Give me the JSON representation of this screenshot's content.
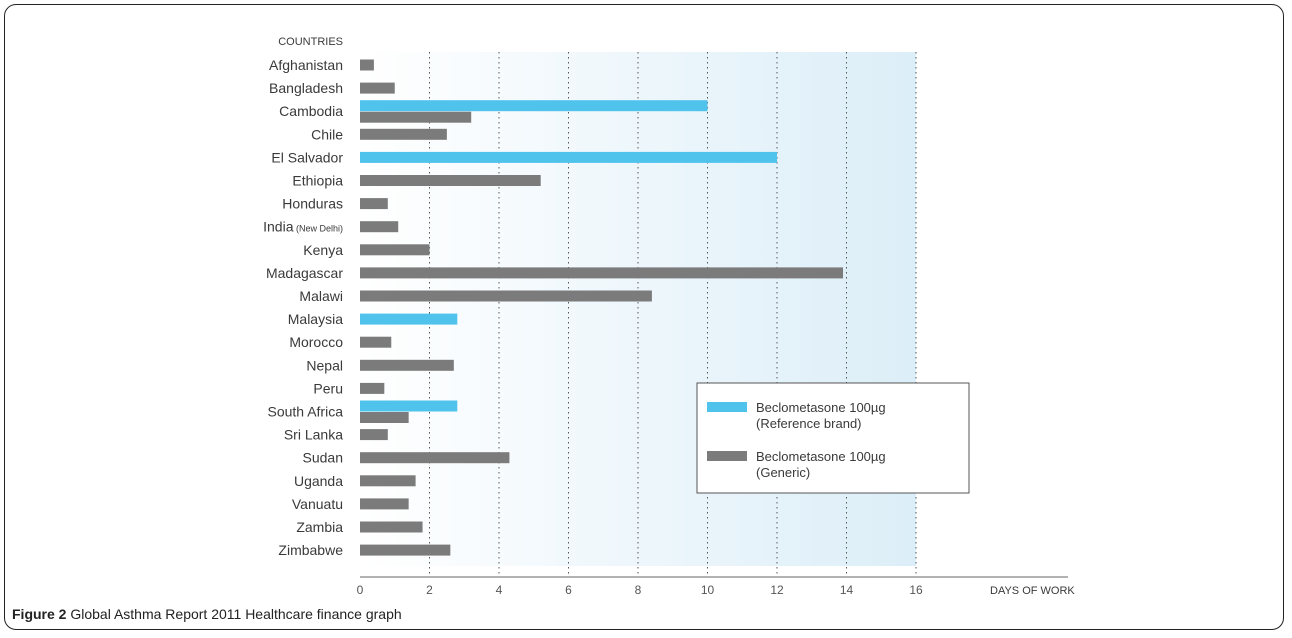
{
  "chart_data": {
    "type": "bar",
    "orientation": "horizontal",
    "y_axis_title": "COUNTRIES",
    "x_axis_title": "DAYS OF WORK",
    "xlim": [
      0,
      16
    ],
    "x_ticks": [
      "0",
      "2",
      "4",
      "6",
      "8",
      "10",
      "12",
      "14",
      "16"
    ],
    "grid": "vertical dotted",
    "legend_position": "bottom-right",
    "categories": [
      {
        "name": "Afghanistan"
      },
      {
        "name": "Bangladesh"
      },
      {
        "name": "Cambodia"
      },
      {
        "name": "Chile"
      },
      {
        "name": "El Salvador"
      },
      {
        "name": "Ethiopia"
      },
      {
        "name": "Honduras"
      },
      {
        "name": "India",
        "suffix": "(New Delhi)"
      },
      {
        "name": "Kenya"
      },
      {
        "name": "Madagascar"
      },
      {
        "name": "Malawi"
      },
      {
        "name": "Malaysia"
      },
      {
        "name": "Morocco"
      },
      {
        "name": "Nepal"
      },
      {
        "name": "Peru"
      },
      {
        "name": "South Africa"
      },
      {
        "name": "Sri Lanka"
      },
      {
        "name": "Sudan"
      },
      {
        "name": "Uganda"
      },
      {
        "name": "Vanuatu"
      },
      {
        "name": "Zambia"
      },
      {
        "name": "Zimbabwe"
      }
    ],
    "series": [
      {
        "name_line1": "Beclometasone 100µg",
        "name_line2": "(Reference brand)",
        "color": "#4fc3ec",
        "values": [
          null,
          null,
          10.0,
          null,
          12.0,
          null,
          null,
          null,
          null,
          null,
          null,
          2.8,
          null,
          null,
          null,
          2.8,
          null,
          null,
          null,
          null,
          null,
          null
        ]
      },
      {
        "name_line1": "Beclometasone 100µg",
        "name_line2": "(Generic)",
        "color": "#7b7b7b",
        "values": [
          0.4,
          1.0,
          3.2,
          2.5,
          null,
          5.2,
          0.8,
          1.1,
          2.0,
          13.9,
          8.4,
          null,
          0.9,
          2.7,
          0.7,
          1.4,
          0.8,
          4.3,
          1.6,
          1.4,
          1.8,
          2.6
        ]
      }
    ]
  },
  "caption": {
    "label": "Figure 2",
    "text": " Global Asthma Report 2011 Healthcare finance graph"
  }
}
